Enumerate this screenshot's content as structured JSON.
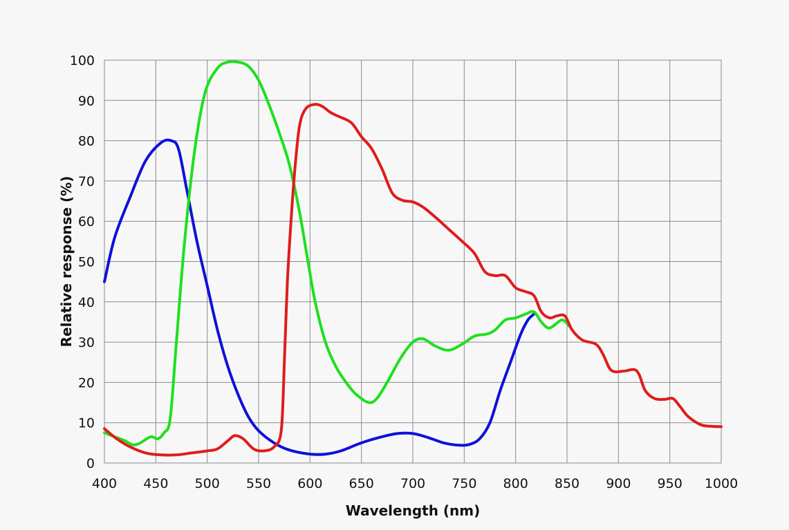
{
  "chart_data": {
    "type": "line",
    "title": "",
    "xlabel": "Wavelength (nm)",
    "ylabel": "Relative response (%)",
    "xlim": [
      400,
      1000
    ],
    "ylim": [
      0,
      100
    ],
    "x_ticks": [
      400,
      450,
      500,
      550,
      600,
      650,
      700,
      750,
      800,
      850,
      900,
      950,
      1000
    ],
    "y_ticks": [
      0,
      10,
      20,
      30,
      40,
      50,
      60,
      70,
      80,
      90,
      100
    ],
    "grid": true,
    "legend": "none",
    "series": [
      {
        "name": "Blue",
        "color": "#1010d8",
        "points": [
          [
            400,
            45
          ],
          [
            410,
            56
          ],
          [
            425,
            66
          ],
          [
            440,
            75
          ],
          [
            455,
            79.5
          ],
          [
            465,
            80
          ],
          [
            472,
            78
          ],
          [
            480,
            68
          ],
          [
            490,
            55
          ],
          [
            500,
            44
          ],
          [
            510,
            33
          ],
          [
            520,
            24
          ],
          [
            530,
            17
          ],
          [
            540,
            11.5
          ],
          [
            550,
            8
          ],
          [
            565,
            5
          ],
          [
            580,
            3.2
          ],
          [
            600,
            2.2
          ],
          [
            615,
            2.2
          ],
          [
            630,
            3
          ],
          [
            650,
            5
          ],
          [
            670,
            6.5
          ],
          [
            685,
            7.3
          ],
          [
            700,
            7.3
          ],
          [
            715,
            6.3
          ],
          [
            730,
            5
          ],
          [
            745,
            4.4
          ],
          [
            755,
            4.6
          ],
          [
            765,
            6
          ],
          [
            775,
            10
          ],
          [
            785,
            18
          ],
          [
            795,
            25
          ],
          [
            805,
            32
          ],
          [
            812,
            35.5
          ],
          [
            818,
            37
          ]
        ]
      },
      {
        "name": "Green",
        "color": "#1ee01e",
        "points": [
          [
            400,
            7.5
          ],
          [
            410,
            6.5
          ],
          [
            420,
            5.5
          ],
          [
            428,
            4.5
          ],
          [
            435,
            5
          ],
          [
            445,
            6.5
          ],
          [
            452,
            6
          ],
          [
            458,
            7.5
          ],
          [
            464,
            11
          ],
          [
            470,
            30
          ],
          [
            478,
            55
          ],
          [
            488,
            78
          ],
          [
            498,
            92
          ],
          [
            510,
            98
          ],
          [
            520,
            99.5
          ],
          [
            530,
            99.5
          ],
          [
            540,
            98.5
          ],
          [
            550,
            95
          ],
          [
            560,
            89
          ],
          [
            570,
            82
          ],
          [
            580,
            74
          ],
          [
            590,
            62
          ],
          [
            598,
            50
          ],
          [
            605,
            40
          ],
          [
            615,
            30
          ],
          [
            625,
            24
          ],
          [
            635,
            20
          ],
          [
            645,
            17
          ],
          [
            657,
            15
          ],
          [
            665,
            16
          ],
          [
            675,
            20
          ],
          [
            688,
            26
          ],
          [
            700,
            30
          ],
          [
            710,
            30.8
          ],
          [
            722,
            29
          ],
          [
            735,
            28
          ],
          [
            748,
            29.5
          ],
          [
            760,
            31.5
          ],
          [
            772,
            32
          ],
          [
            780,
            33
          ],
          [
            790,
            35.5
          ],
          [
            800,
            36
          ],
          [
            810,
            37
          ],
          [
            818,
            37.5
          ],
          [
            825,
            35
          ],
          [
            833,
            33.5
          ],
          [
            845,
            35.5
          ],
          [
            852,
            34
          ]
        ]
      },
      {
        "name": "Red",
        "color": "#e01c1c",
        "points": [
          [
            400,
            8.5
          ],
          [
            412,
            6
          ],
          [
            425,
            4
          ],
          [
            440,
            2.5
          ],
          [
            455,
            2
          ],
          [
            470,
            2
          ],
          [
            485,
            2.5
          ],
          [
            500,
            3
          ],
          [
            510,
            3.5
          ],
          [
            520,
            5.5
          ],
          [
            527,
            6.8
          ],
          [
            535,
            6
          ],
          [
            545,
            3.5
          ],
          [
            555,
            3
          ],
          [
            565,
            4
          ],
          [
            572,
            8
          ],
          [
            575,
            25
          ],
          [
            578,
            45
          ],
          [
            582,
            62
          ],
          [
            586,
            75
          ],
          [
            590,
            84
          ],
          [
            596,
            88
          ],
          [
            605,
            89
          ],
          [
            612,
            88.5
          ],
          [
            620,
            87
          ],
          [
            628,
            86
          ],
          [
            640,
            84.5
          ],
          [
            650,
            81
          ],
          [
            660,
            78
          ],
          [
            670,
            73
          ],
          [
            680,
            67
          ],
          [
            690,
            65.2
          ],
          [
            700,
            64.8
          ],
          [
            710,
            63.5
          ],
          [
            722,
            61
          ],
          [
            735,
            58
          ],
          [
            748,
            55
          ],
          [
            760,
            52
          ],
          [
            770,
            47.5
          ],
          [
            780,
            46.5
          ],
          [
            790,
            46.5
          ],
          [
            800,
            43.5
          ],
          [
            810,
            42.5
          ],
          [
            818,
            41.5
          ],
          [
            825,
            37.5
          ],
          [
            833,
            36
          ],
          [
            840,
            36.5
          ],
          [
            848,
            36.5
          ],
          [
            855,
            33
          ],
          [
            865,
            30.5
          ],
          [
            878,
            29.5
          ],
          [
            885,
            27
          ],
          [
            893,
            23
          ],
          [
            905,
            22.8
          ],
          [
            915,
            23.2
          ],
          [
            920,
            22
          ],
          [
            926,
            18
          ],
          [
            935,
            16
          ],
          [
            945,
            15.8
          ],
          [
            953,
            16
          ],
          [
            960,
            14
          ],
          [
            968,
            11.5
          ],
          [
            980,
            9.5
          ],
          [
            990,
            9.1
          ],
          [
            1000,
            9
          ]
        ]
      }
    ]
  }
}
